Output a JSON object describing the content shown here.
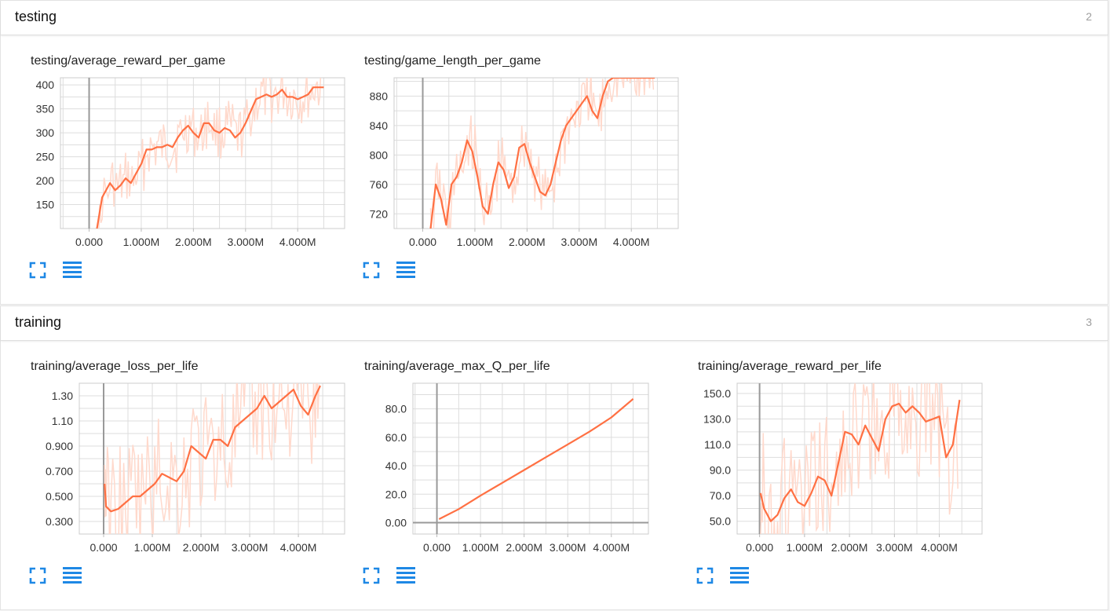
{
  "accent_color": "#ff7043",
  "raw_color": "#ffd9cc",
  "icon_color": "#1e88e5",
  "groups": [
    {
      "title": "testing",
      "count": "2",
      "cards": [
        {
          "chart_data": {
            "type": "line",
            "title": "testing/average_reward_per_game",
            "xlabel": "",
            "ylabel": "",
            "xlim": [
              -550000,
              4900000
            ],
            "ylim": [
              100,
              415
            ],
            "x_ticks": [
              0,
              1000000,
              2000000,
              3000000,
              4000000
            ],
            "x_tick_labels": [
              "0.000",
              "1.000M",
              "2.000M",
              "3.000M",
              "4.000M"
            ],
            "y_ticks": [
              150,
              200,
              250,
              300,
              350,
              400
            ],
            "y_tick_labels": [
              "150",
              "200",
              "250",
              "300",
              "350",
              "400"
            ],
            "grid": true,
            "series": [
              {
                "x": [
                  150000,
                  250000,
                  400000,
                  500000,
                  600000,
                  700000,
                  800000,
                  900000,
                  1000000,
                  1100000,
                  1200000,
                  1300000,
                  1400000,
                  1500000,
                  1600000,
                  1700000,
                  1800000,
                  1900000,
                  2000000,
                  2100000,
                  2200000,
                  2300000,
                  2400000,
                  2500000,
                  2600000,
                  2700000,
                  2800000,
                  2900000,
                  3000000,
                  3100000,
                  3200000,
                  3300000,
                  3400000,
                  3500000,
                  3600000,
                  3700000,
                  3800000,
                  3900000,
                  4000000,
                  4100000,
                  4200000,
                  4300000,
                  4400000,
                  4500000
                ],
                "values": [
                  100,
                  165,
                  195,
                  180,
                  190,
                  205,
                  195,
                  215,
                  235,
                  265,
                  265,
                  270,
                  270,
                  275,
                  270,
                  290,
                  305,
                  315,
                  300,
                  290,
                  320,
                  320,
                  305,
                  300,
                  310,
                  305,
                  290,
                  300,
                  320,
                  345,
                  370,
                  375,
                  380,
                  375,
                  380,
                  390,
                  375,
                  375,
                  370,
                  375,
                  380,
                  395,
                  395,
                  395
                ]
              }
            ]
          }
        },
        {
          "chart_data": {
            "type": "line",
            "title": "testing/game_length_per_game",
            "xlabel": "",
            "ylabel": "",
            "xlim": [
              -550000,
              4900000
            ],
            "ylim": [
              700,
              905
            ],
            "x_ticks": [
              0,
              1000000,
              2000000,
              3000000,
              4000000
            ],
            "x_tick_labels": [
              "0.000",
              "1.000M",
              "2.000M",
              "3.000M",
              "4.000M"
            ],
            "y_ticks": [
              720,
              760,
              800,
              840,
              880
            ],
            "y_tick_labels": [
              "720",
              "760",
              "800",
              "840",
              "880"
            ],
            "grid": true,
            "series": [
              {
                "x": [
                  150000,
                  250000,
                  350000,
                  450000,
                  550000,
                  650000,
                  750000,
                  850000,
                  950000,
                  1050000,
                  1150000,
                  1250000,
                  1350000,
                  1450000,
                  1550000,
                  1650000,
                  1750000,
                  1850000,
                  1950000,
                  2050000,
                  2150000,
                  2250000,
                  2350000,
                  2450000,
                  2550000,
                  2650000,
                  2750000,
                  2850000,
                  2950000,
                  3050000,
                  3150000,
                  3250000,
                  3350000,
                  3450000,
                  3550000,
                  3650000,
                  3750000,
                  3850000,
                  3950000,
                  4050000,
                  4150000,
                  4250000,
                  4350000,
                  4450000
                ],
                "values": [
                  700,
                  760,
                  740,
                  705,
                  760,
                  770,
                  790,
                  820,
                  805,
                  770,
                  730,
                  720,
                  760,
                  790,
                  780,
                  755,
                  770,
                  810,
                  815,
                  790,
                  770,
                  750,
                  745,
                  760,
                  790,
                  820,
                  840,
                  850,
                  860,
                  870,
                  880,
                  860,
                  850,
                  880,
                  900,
                  905,
                  905,
                  905,
                  905,
                  905,
                  905,
                  905,
                  905,
                  905
                ]
              }
            ]
          }
        }
      ]
    },
    {
      "title": "training",
      "count": "3",
      "cards": [
        {
          "chart_data": {
            "type": "line",
            "title": "training/average_loss_per_life",
            "xlabel": "",
            "ylabel": "",
            "xlim": [
              -500000,
              4950000
            ],
            "ylim": [
              0.2,
              1.4
            ],
            "x_ticks": [
              0,
              1000000,
              2000000,
              3000000,
              4000000
            ],
            "x_tick_labels": [
              "0.000",
              "1.000M",
              "2.000M",
              "3.000M",
              "4.000M"
            ],
            "y_ticks": [
              0.3,
              0.5,
              0.7,
              0.9,
              1.1,
              1.3
            ],
            "y_tick_labels": [
              "0.300",
              "0.500",
              "0.700",
              "0.900",
              "1.10",
              "1.30"
            ],
            "grid": true,
            "series": [
              {
                "x": [
                  20000,
                  50000,
                  150000,
                  300000,
                  450000,
                  600000,
                  750000,
                  900000,
                  1050000,
                  1200000,
                  1350000,
                  1500000,
                  1650000,
                  1800000,
                  1950000,
                  2100000,
                  2250000,
                  2400000,
                  2550000,
                  2700000,
                  2850000,
                  3000000,
                  3150000,
                  3300000,
                  3450000,
                  3600000,
                  3750000,
                  3900000,
                  4050000,
                  4200000,
                  4350000,
                  4450000
                ],
                "values": [
                  0.6,
                  0.42,
                  0.38,
                  0.4,
                  0.45,
                  0.5,
                  0.5,
                  0.55,
                  0.6,
                  0.68,
                  0.65,
                  0.62,
                  0.7,
                  0.9,
                  0.85,
                  0.8,
                  0.95,
                  0.95,
                  0.9,
                  1.05,
                  1.1,
                  1.15,
                  1.2,
                  1.3,
                  1.2,
                  1.25,
                  1.3,
                  1.35,
                  1.22,
                  1.15,
                  1.3,
                  1.38
                ]
              }
            ]
          }
        },
        {
          "chart_data": {
            "type": "line",
            "title": "training/average_max_Q_per_life",
            "xlabel": "",
            "ylabel": "",
            "xlim": [
              -550000,
              4850000
            ],
            "ylim": [
              -8,
              98
            ],
            "x_ticks": [
              0,
              1000000,
              2000000,
              3000000,
              4000000
            ],
            "x_tick_labels": [
              "0.000",
              "1.000M",
              "2.000M",
              "3.000M",
              "4.000M"
            ],
            "y_ticks": [
              0,
              20,
              40,
              60,
              80
            ],
            "y_tick_labels": [
              "0.00",
              "20.0",
              "40.0",
              "60.0",
              "80.0"
            ],
            "grid": true,
            "series": [
              {
                "x": [
                  50000,
                  500000,
                  1000000,
                  1500000,
                  2000000,
                  2500000,
                  3000000,
                  3500000,
                  4000000,
                  4500000
                ],
                "values": [
                  2.5,
                  9.5,
                  19,
                  28,
                  37,
                  46,
                  55,
                  64,
                  74,
                  87
                ]
              }
            ]
          }
        },
        {
          "chart_data": {
            "type": "line",
            "title": "training/average_reward_per_life",
            "xlabel": "",
            "ylabel": "",
            "xlim": [
              -500000,
              4950000
            ],
            "ylim": [
              40,
              158
            ],
            "x_ticks": [
              0,
              1000000,
              2000000,
              3000000,
              4000000
            ],
            "x_tick_labels": [
              "0.000",
              "1.000M",
              "2.000M",
              "3.000M",
              "4.000M"
            ],
            "y_ticks": [
              50,
              70,
              90,
              110,
              130,
              150
            ],
            "y_tick_labels": [
              "50.0",
              "70.0",
              "90.0",
              "110.0",
              "130.0",
              "150.0"
            ],
            "grid": true,
            "series": [
              {
                "x": [
                  20000,
                  100000,
                  250000,
                  400000,
                  550000,
                  700000,
                  850000,
                  1000000,
                  1150000,
                  1300000,
                  1450000,
                  1600000,
                  1750000,
                  1900000,
                  2050000,
                  2200000,
                  2350000,
                  2500000,
                  2650000,
                  2800000,
                  2950000,
                  3100000,
                  3250000,
                  3400000,
                  3550000,
                  3700000,
                  3850000,
                  4000000,
                  4150000,
                  4300000,
                  4450000
                ],
                "values": [
                  72,
                  60,
                  50,
                  55,
                  68,
                  75,
                  65,
                  62,
                  72,
                  85,
                  82,
                  70,
                  95,
                  120,
                  118,
                  110,
                  125,
                  115,
                  105,
                  130,
                  140,
                  142,
                  135,
                  140,
                  135,
                  128,
                  130,
                  132,
                  100,
                  110,
                  145
                ]
              }
            ]
          }
        }
      ]
    }
  ]
}
